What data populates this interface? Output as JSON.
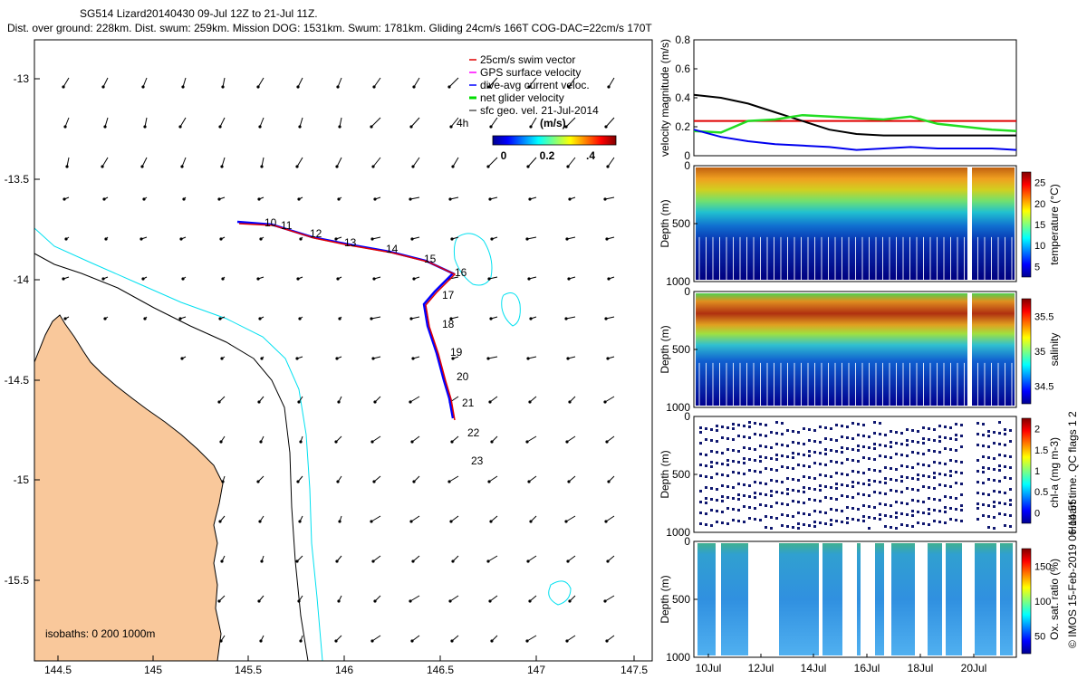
{
  "header": {
    "line1": "SG514 Lizard20140430 09-Jul 12Z to 21-Jul 11Z.",
    "line2": "Dist. over ground: 228km. Dist. swum: 259km. Mission DOG: 1531km. Swum: 1781km. Gliding 24cm/s 166T COG-DAC=22cm/s 170T"
  },
  "colors": {
    "land": "#f9c89b",
    "isobath_200": "#000000",
    "isobath_1000": "#00e0f0",
    "swim": "#e00000",
    "gps": "#ff00ff",
    "dac": "#0000ff",
    "net": "#00dd00",
    "geo": "#000000"
  },
  "map": {
    "legend": [
      "25cm/s swim vector",
      "GPS surface velocity",
      "dive-avg current veloc.",
      "net glider velocity",
      "sfc geo. vel. 21-Jul-2014"
    ],
    "colorbar_title": "(m/s)",
    "colorbar_ticks": [
      "0",
      "0.2",
      ".4"
    ],
    "isobath_label": "isobaths: 0   200  1000m",
    "xticks": [
      "144.5",
      "145",
      "145.5",
      "146",
      "146.5",
      "147",
      "147.5"
    ],
    "yticks": [
      "-13",
      "-13.5",
      "-14",
      "-14.5",
      "-15",
      "-15.5"
    ],
    "day_labels": [
      "4h",
      "10",
      "11",
      "12",
      "13",
      "14",
      "15",
      "16",
      "17",
      "18",
      "19",
      "20",
      "21",
      "22",
      "23"
    ]
  },
  "chart_data": [
    {
      "type": "line",
      "title": "",
      "ylabel": "velocity magnitude (m/s)",
      "ylim": [
        0,
        0.8
      ],
      "yticks": [
        "0",
        "0.2",
        "0.4",
        "0.6",
        "0.8"
      ],
      "xlim": [
        "09-Jul 12Z",
        "21-Jul 11Z"
      ],
      "series": [
        {
          "color": "#e00000",
          "x": [
            0,
            6.8,
            7.0,
            11.9
          ],
          "y": [
            0.24,
            0.24,
            0.24,
            0.24
          ]
        },
        {
          "color": "#000000",
          "x": [
            0,
            1,
            2,
            3,
            4,
            5,
            6,
            7,
            8,
            9,
            10,
            11,
            11.9
          ],
          "y": [
            0.42,
            0.4,
            0.36,
            0.3,
            0.24,
            0.18,
            0.15,
            0.14,
            0.14,
            0.14,
            0.14,
            0.14,
            0.14
          ]
        },
        {
          "color": "#22dd22",
          "x": [
            0,
            1,
            2,
            3,
            4,
            5,
            6,
            7,
            8,
            9,
            10,
            11,
            11.9
          ],
          "y": [
            0.17,
            0.16,
            0.24,
            0.25,
            0.28,
            0.27,
            0.26,
            0.25,
            0.27,
            0.22,
            0.2,
            0.18,
            0.17
          ]
        },
        {
          "color": "#0000ee",
          "x": [
            0,
            1,
            2,
            3,
            4,
            5,
            6,
            7,
            8,
            9,
            10,
            11,
            11.9
          ],
          "y": [
            0.18,
            0.13,
            0.1,
            0.08,
            0.07,
            0.06,
            0.04,
            0.05,
            0.06,
            0.05,
            0.05,
            0.05,
            0.04
          ]
        }
      ]
    },
    {
      "type": "heatmap",
      "ylabel": "Depth (m)",
      "yticks": [
        "0",
        "500",
        "1000"
      ],
      "colorbar_label": "temperature (°C)",
      "colorbar_ticks": [
        "5",
        "10",
        "15",
        "20",
        "25"
      ]
    },
    {
      "type": "heatmap",
      "ylabel": "Depth (m)",
      "yticks": [
        "0",
        "500",
        "1000"
      ],
      "colorbar_label": "salinity",
      "colorbar_ticks": [
        "34.5",
        "35",
        "35.5"
      ]
    },
    {
      "type": "heatmap",
      "ylabel": "Depth (m)",
      "yticks": [
        "0",
        "500",
        "1000"
      ],
      "colorbar_label": "chl-a (mg m-3)",
      "colorbar_ticks": [
        "0",
        "0.5",
        "1",
        "1.5",
        "2"
      ]
    },
    {
      "type": "heatmap",
      "ylabel": "Depth (m)",
      "yticks": [
        "0",
        "500",
        "1000"
      ],
      "xticks": [
        "10Jul",
        "12Jul",
        "14Jul",
        "16Jul",
        "18Jul",
        "20Jul"
      ],
      "colorbar_label": "Ox. sat. ratio (%)",
      "colorbar_ticks": [
        "50",
        "100",
        "150"
      ]
    }
  ],
  "side_labels": {
    "flags": "Hobart time. QC flags 1  2",
    "credit": "© IMOS 15-Feb-2019 06:14:55"
  }
}
